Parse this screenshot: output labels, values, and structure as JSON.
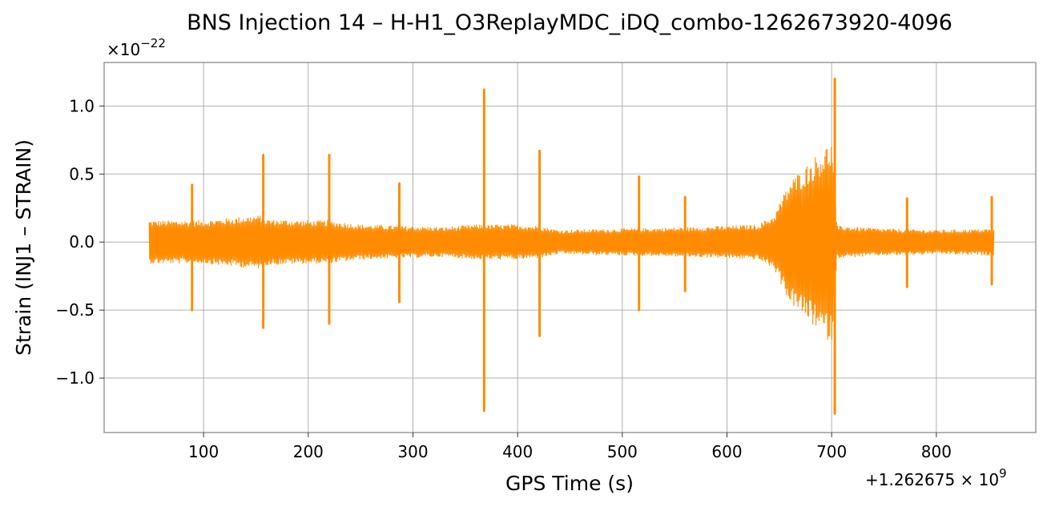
{
  "chart_data": {
    "type": "line",
    "title": "BNS Injection 14 – H-H1_O3ReplayMDC_iDQ_combo-1262673920-4096",
    "xlabel": "GPS Time (s)",
    "ylabel": "Strain (INJ1 – STRAIN)",
    "y_multiplier_label": "×10",
    "y_multiplier_exponent": "−22",
    "x_offset_label": "+1.262675 × 10",
    "x_offset_exponent": "9",
    "xlim": [
      5,
      895
    ],
    "ylim": [
      -1.4,
      1.32
    ],
    "x_ticks": [
      {
        "value": 100,
        "label": "100"
      },
      {
        "value": 200,
        "label": "200"
      },
      {
        "value": 300,
        "label": "300"
      },
      {
        "value": 400,
        "label": "400"
      },
      {
        "value": 500,
        "label": "500"
      },
      {
        "value": 600,
        "label": "600"
      },
      {
        "value": 700,
        "label": "700"
      },
      {
        "value": 800,
        "label": "800"
      }
    ],
    "y_ticks": [
      {
        "value": 1.0,
        "label": "1.0"
      },
      {
        "value": 0.5,
        "label": "0.5"
      },
      {
        "value": 0.0,
        "label": "0.0"
      },
      {
        "value": -0.5,
        "label": "−0.5"
      },
      {
        "value": -1.0,
        "label": "−1.0"
      }
    ],
    "grid": true,
    "legend": "none",
    "series": [
      {
        "color": "#ff8c00",
        "x_start": 48,
        "x_end": 855,
        "baseline_envelope": [
          [
            48,
            0.16
          ],
          [
            100,
            0.16
          ],
          [
            155,
            0.2
          ],
          [
            160,
            0.17
          ],
          [
            200,
            0.16
          ],
          [
            220,
            0.16
          ],
          [
            250,
            0.13
          ],
          [
            290,
            0.12
          ],
          [
            330,
            0.11
          ],
          [
            360,
            0.13
          ],
          [
            400,
            0.13
          ],
          [
            420,
            0.12
          ],
          [
            440,
            0.09
          ],
          [
            500,
            0.1
          ],
          [
            560,
            0.11
          ],
          [
            600,
            0.12
          ],
          [
            630,
            0.13
          ],
          [
            645,
            0.2
          ],
          [
            660,
            0.45
          ],
          [
            680,
            0.6
          ],
          [
            700,
            0.75
          ],
          [
            705,
            0.12
          ],
          [
            750,
            0.1
          ],
          [
            800,
            0.09
          ],
          [
            855,
            0.1
          ]
        ],
        "spikes": [
          {
            "x": 89,
            "max": 0.42,
            "min": -0.5
          },
          {
            "x": 157,
            "max": 0.64,
            "min": -0.63
          },
          {
            "x": 220,
            "max": 0.64,
            "min": -0.6
          },
          {
            "x": 287,
            "max": 0.43,
            "min": -0.44
          },
          {
            "x": 368,
            "max": 1.12,
            "min": -1.24
          },
          {
            "x": 421,
            "max": 0.67,
            "min": -0.69
          },
          {
            "x": 516,
            "max": 0.48,
            "min": -0.5
          },
          {
            "x": 560,
            "max": 0.33,
            "min": -0.36
          },
          {
            "x": 703,
            "max": 1.2,
            "min": -1.26
          },
          {
            "x": 772,
            "max": 0.32,
            "min": -0.33
          },
          {
            "x": 853,
            "max": 0.33,
            "min": -0.31
          }
        ]
      }
    ]
  }
}
